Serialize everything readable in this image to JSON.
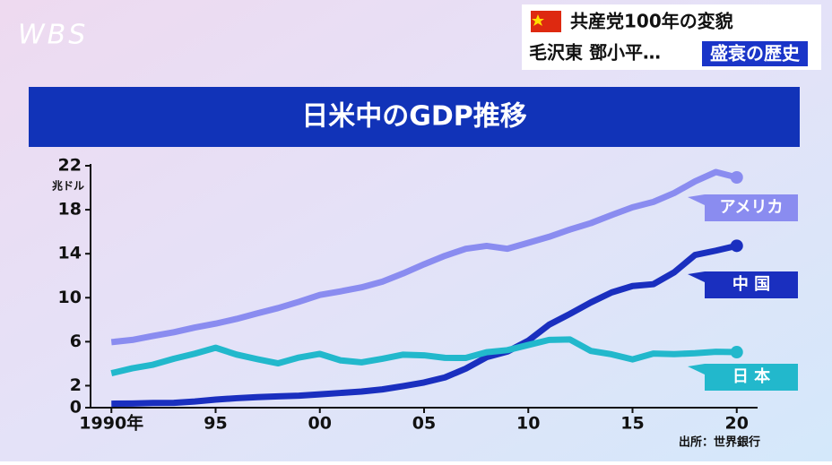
{
  "logo": "WBS",
  "header": {
    "line1": "共産党100年の変貌",
    "line2": "毛沢東 鄧小平…",
    "highlight": "盛衰の歴史"
  },
  "chart_data": {
    "type": "line",
    "title": "日米中のGDP推移",
    "y_unit": "兆ドル",
    "source": "出所：世界銀行",
    "x": [
      1990,
      1991,
      1992,
      1993,
      1994,
      1995,
      1996,
      1997,
      1998,
      1999,
      2000,
      2001,
      2002,
      2003,
      2004,
      2005,
      2006,
      2007,
      2008,
      2009,
      2010,
      2011,
      2012,
      2013,
      2014,
      2015,
      2016,
      2017,
      2018,
      2019,
      2020
    ],
    "series": [
      {
        "name": "アメリカ",
        "color": "#8a8cf0",
        "values": [
          5.96,
          6.16,
          6.52,
          6.86,
          7.29,
          7.64,
          8.07,
          8.58,
          9.06,
          9.63,
          10.25,
          10.58,
          10.94,
          11.46,
          12.21,
          13.04,
          13.81,
          14.45,
          14.71,
          14.45,
          14.99,
          15.54,
          16.2,
          16.78,
          17.52,
          18.22,
          18.71,
          19.52,
          20.58,
          21.43,
          20.94
        ]
      },
      {
        "name": "中 国",
        "color": "#1a2fbf",
        "values": [
          0.36,
          0.38,
          0.43,
          0.44,
          0.56,
          0.73,
          0.86,
          0.96,
          1.03,
          1.09,
          1.21,
          1.34,
          1.47,
          1.66,
          1.96,
          2.29,
          2.75,
          3.55,
          4.59,
          5.1,
          6.09,
          7.55,
          8.53,
          9.57,
          10.48,
          11.06,
          11.23,
          12.31,
          13.89,
          14.28,
          14.72
        ]
      },
      {
        "name": "日 本",
        "color": "#22b8cc",
        "values": [
          3.13,
          3.58,
          3.91,
          4.45,
          4.91,
          5.45,
          4.83,
          4.41,
          4.03,
          4.56,
          4.89,
          4.3,
          4.12,
          4.45,
          4.82,
          4.76,
          4.53,
          4.52,
          5.04,
          5.23,
          5.7,
          6.16,
          6.2,
          5.16,
          4.85,
          4.39,
          4.92,
          4.87,
          4.95,
          5.08,
          5.05
        ]
      }
    ],
    "xlim": [
      1989,
      2021
    ],
    "xticks": [
      {
        "value": 1990,
        "label": "1990年"
      },
      {
        "value": 1995,
        "label": "95"
      },
      {
        "value": 2000,
        "label": "00"
      },
      {
        "value": 2005,
        "label": "05"
      },
      {
        "value": 2010,
        "label": "10"
      },
      {
        "value": 2015,
        "label": "15"
      },
      {
        "value": 2020,
        "label": "20"
      }
    ],
    "ylim": [
      0,
      22
    ],
    "yticks": [
      0,
      2,
      6,
      10,
      14,
      18,
      22
    ],
    "grid": false
  }
}
